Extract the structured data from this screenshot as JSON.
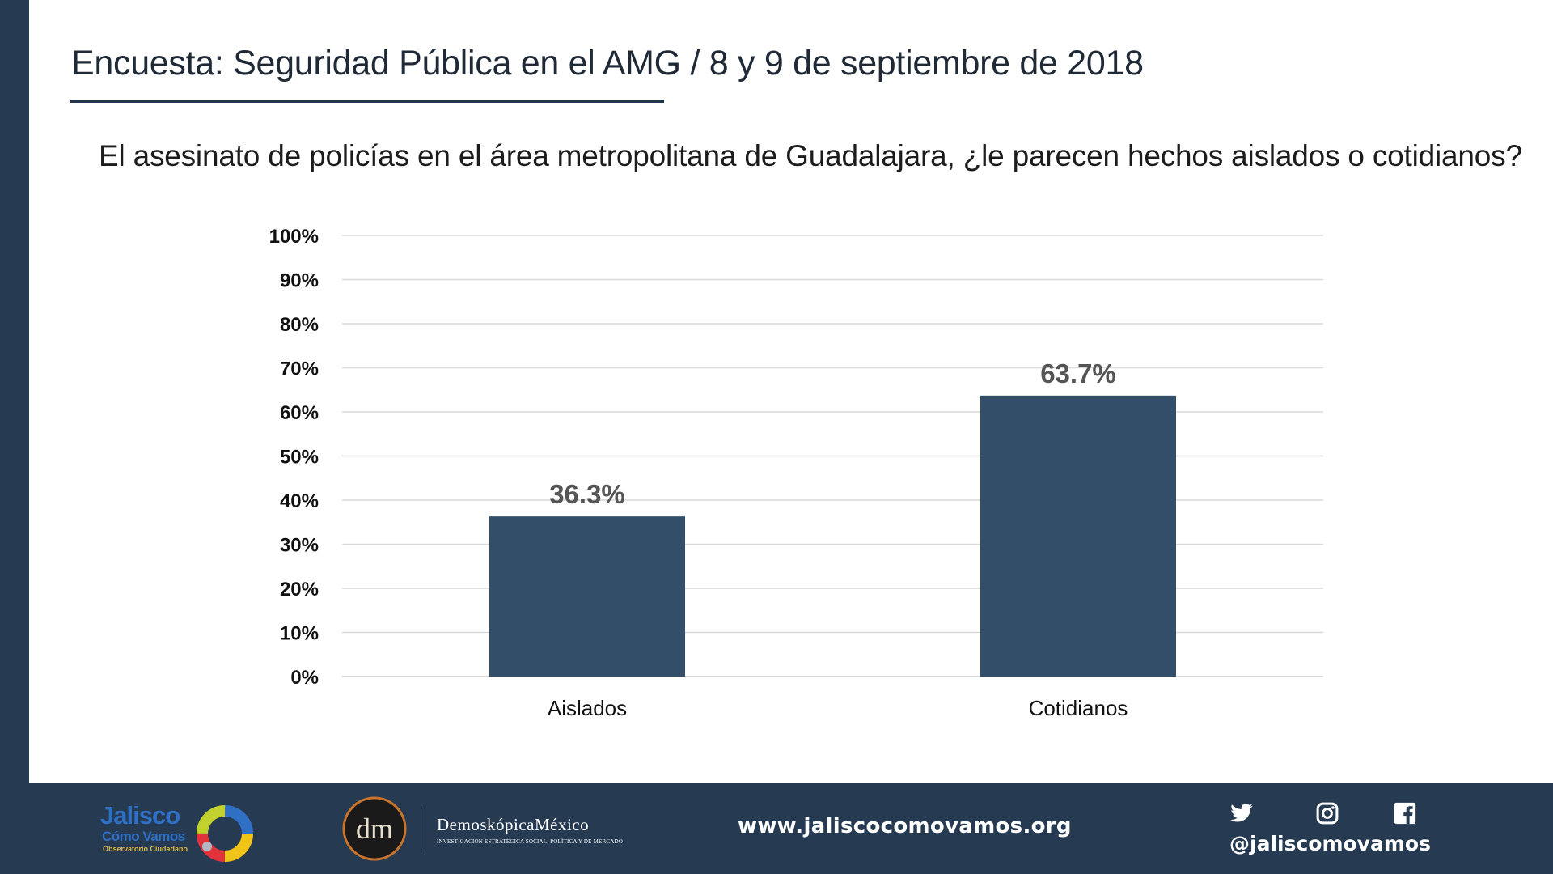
{
  "slide": {
    "title": "Encuesta: Seguridad Pública en el AMG / 8 y 9 de septiembre de 2018",
    "question": "El asesinato de policías en el área metropolitana de Guadalajara, ¿le parecen hechos aislados o cotidianos?"
  },
  "chart_data": {
    "type": "bar",
    "categories": [
      "Aislados",
      "Cotidianos"
    ],
    "values": [
      36.3,
      63.7
    ],
    "value_labels": [
      "36.3%",
      "63.7%"
    ],
    "ylim": [
      0,
      100
    ],
    "yticks": [
      "0%",
      "10%",
      "20%",
      "30%",
      "40%",
      "50%",
      "60%",
      "70%",
      "80%",
      "90%",
      "100%"
    ],
    "grid": true,
    "bar_color": "#334e68"
  },
  "footer": {
    "logo_jcv": {
      "line1": "Jalisco",
      "line2": "Cómo Vamos",
      "line3": "Observatorio Ciudadano"
    },
    "logo_dm": {
      "monogram": "dm",
      "name": "DemoskópicaMéxico",
      "tagline": "INVESTIGACIÓN ESTRATÉGICA SOCIAL, POLÍTICA Y DE MERCADO"
    },
    "website": "www.jaliscocomovamos.org",
    "social_handle": "@jaliscomovamos",
    "social_icons": [
      "twitter-icon",
      "instagram-icon",
      "facebook-icon"
    ]
  },
  "colors": {
    "footer_bg": "#263a52",
    "bar": "#334e68",
    "value_label": "#555555"
  }
}
